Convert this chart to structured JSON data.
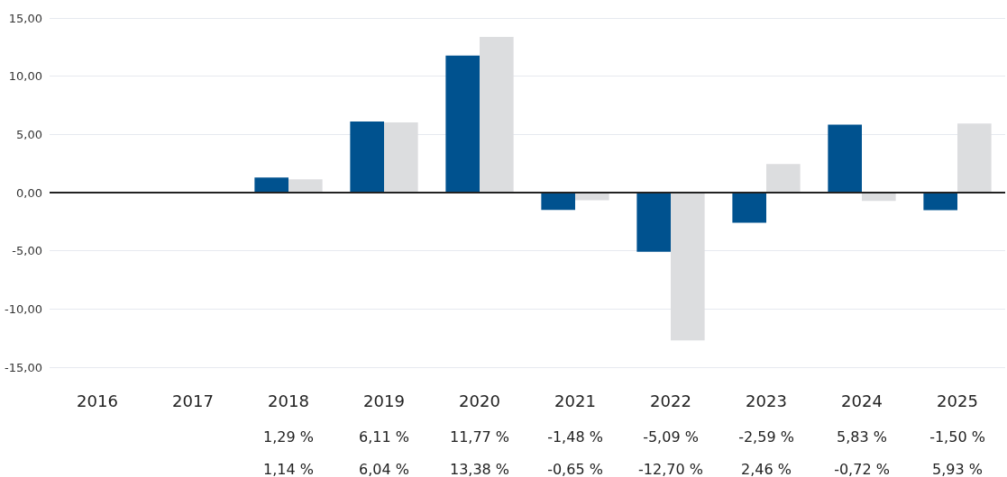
{
  "chart_data": {
    "type": "bar",
    "categories": [
      "2016",
      "2017",
      "2018",
      "2019",
      "2020",
      "2021",
      "2022",
      "2023",
      "2024",
      "2025"
    ],
    "series": [
      {
        "color": "#00528f",
        "values": [
          null,
          null,
          1.29,
          6.11,
          11.77,
          -1.48,
          -5.09,
          -2.59,
          5.83,
          -1.5
        ],
        "value_labels": [
          null,
          null,
          "1,29 %",
          "6,11 %",
          "11,77 %",
          "-1,48 %",
          "-5,09 %",
          "-2,59 %",
          "5,83 %",
          "-1,50 %"
        ]
      },
      {
        "color": "#dcdddf",
        "values": [
          null,
          null,
          1.14,
          6.04,
          13.38,
          -0.65,
          -12.7,
          2.46,
          -0.72,
          5.93
        ],
        "value_labels": [
          null,
          null,
          "1,14 %",
          "6,04 %",
          "13,38 %",
          "-0,65 %",
          "-12,70 %",
          "2,46 %",
          "-0,72 %",
          "5,93 %"
        ]
      }
    ],
    "ylim": [
      -15,
      15
    ],
    "yticks": [
      {
        "value": -15,
        "label": "-15,00"
      },
      {
        "value": -10,
        "label": "-10,00"
      },
      {
        "value": -5,
        "label": "-5,00"
      },
      {
        "value": 0,
        "label": "0,00"
      },
      {
        "value": 5,
        "label": "5,00"
      },
      {
        "value": 10,
        "label": "10,00"
      },
      {
        "value": 15,
        "label": "15,00"
      }
    ],
    "grid": "y"
  }
}
